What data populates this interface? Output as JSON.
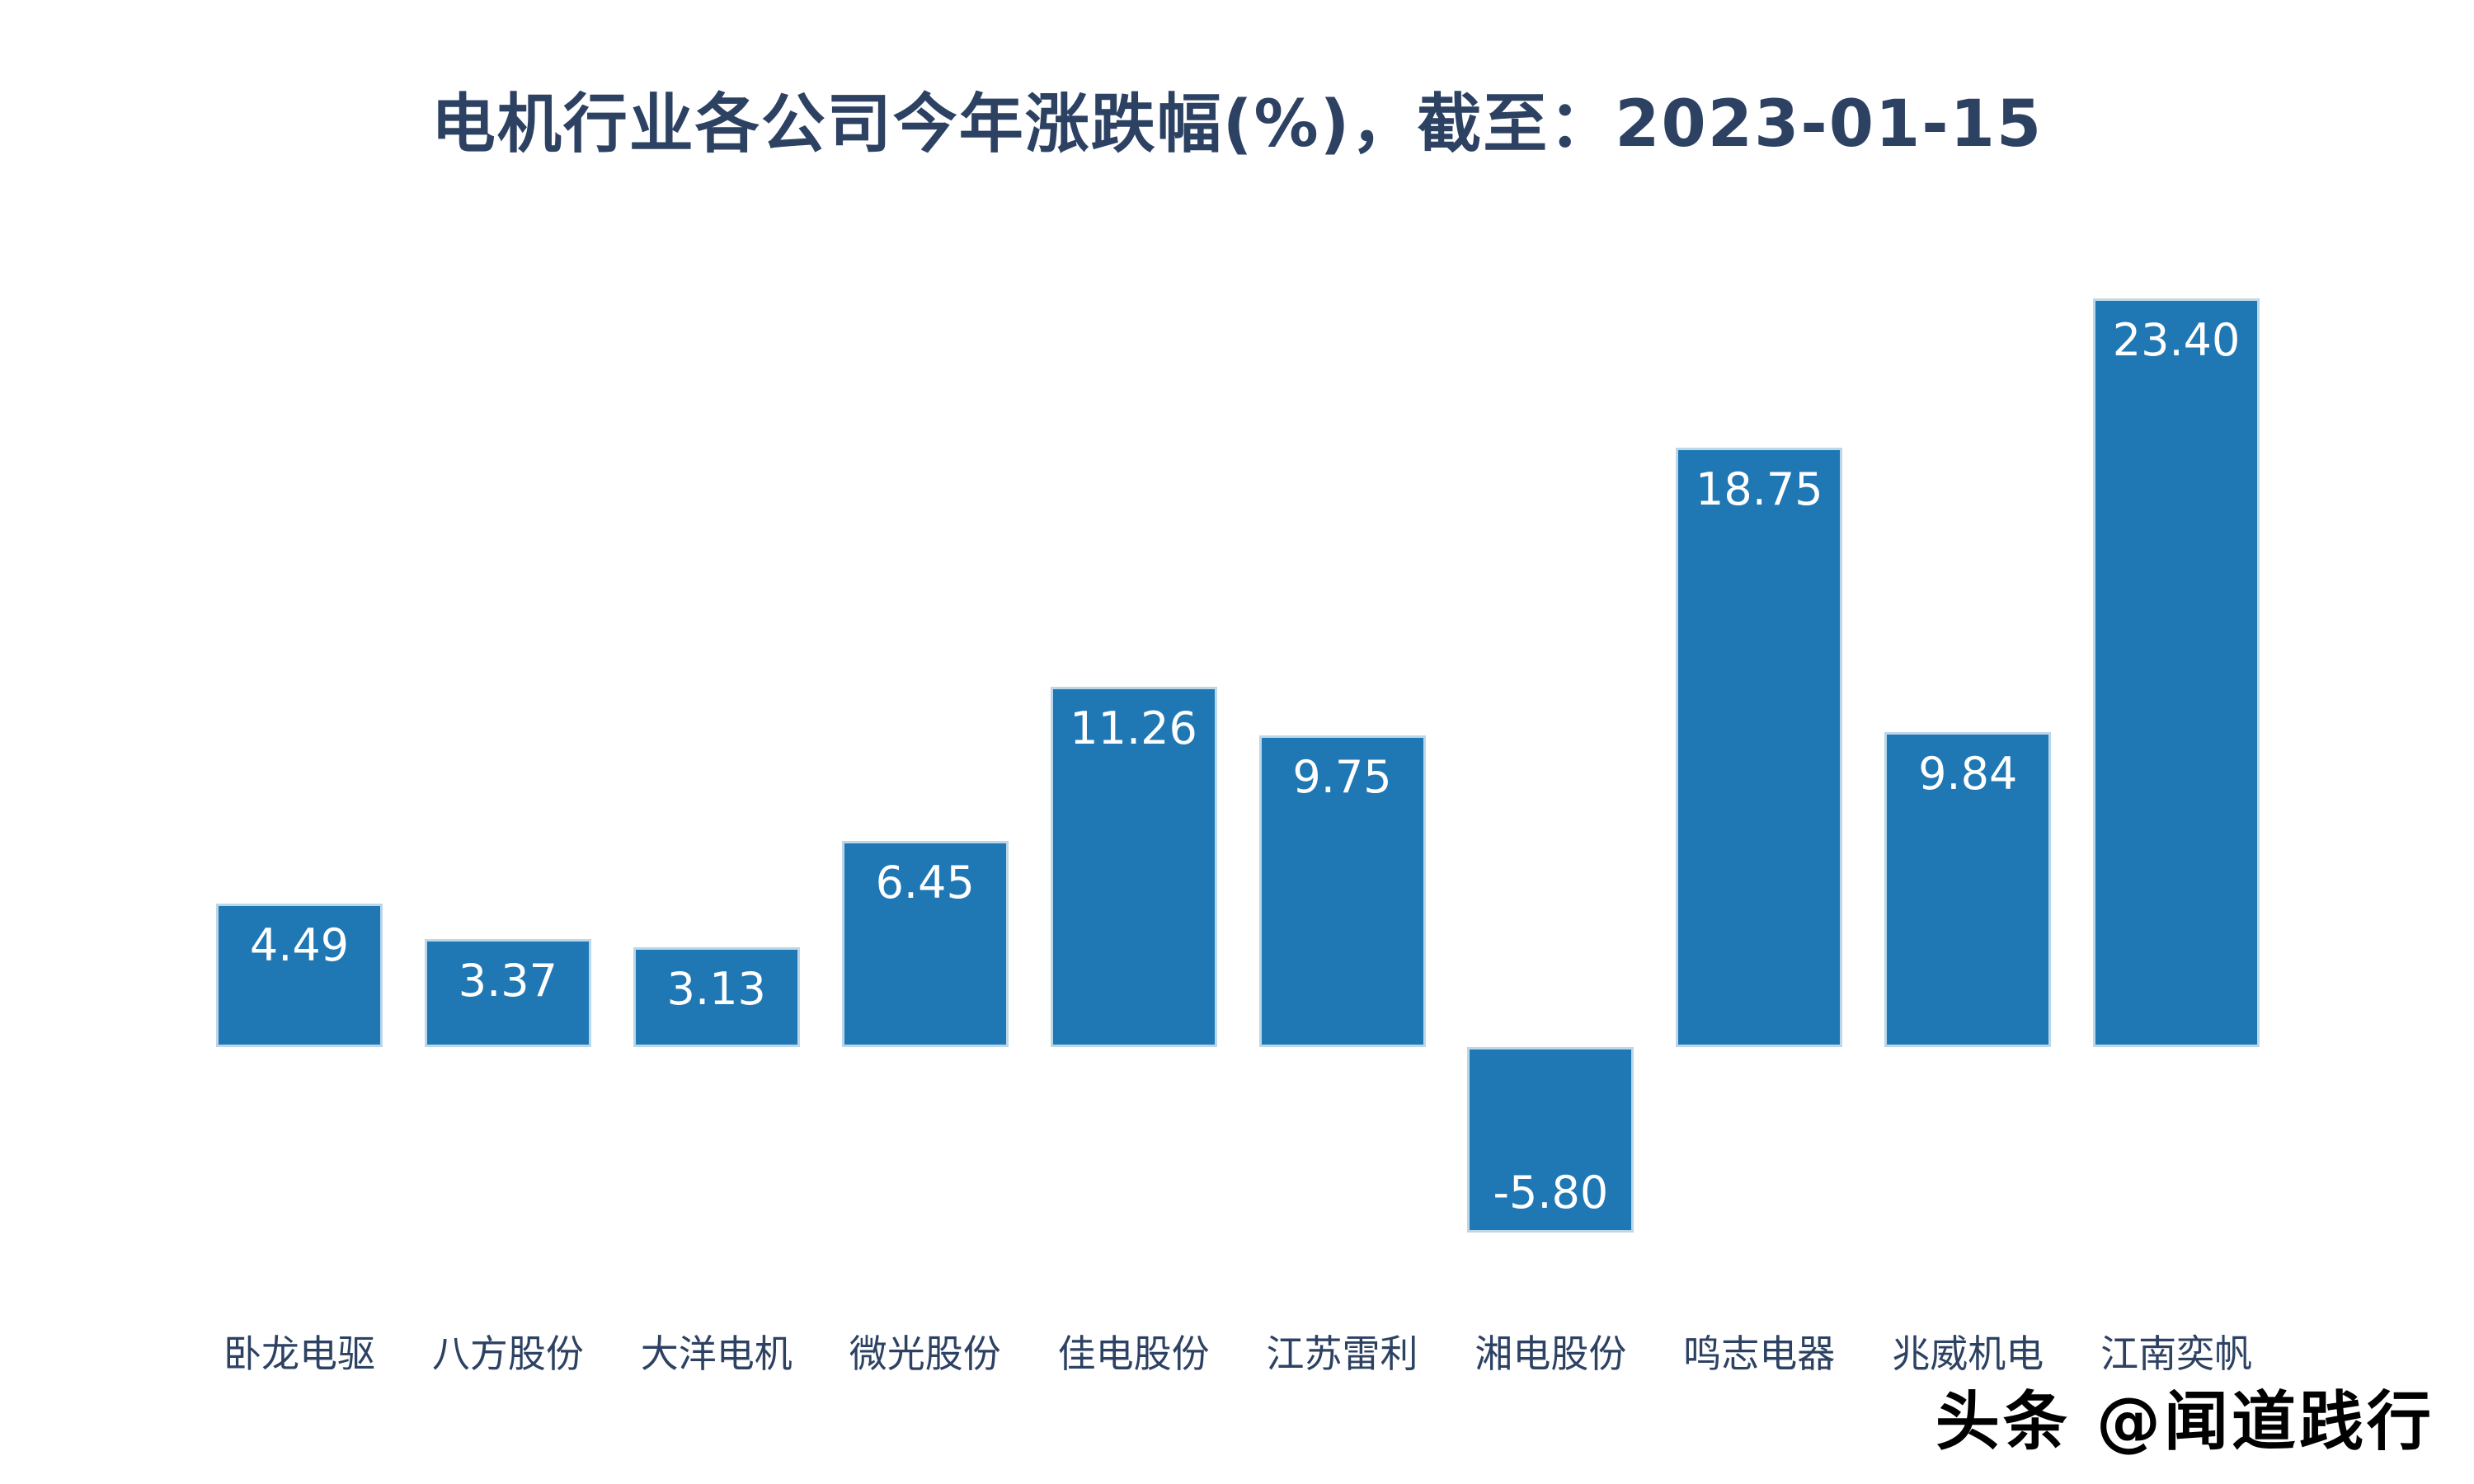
{
  "title": "电机行业各公司今年涨跌幅(%)，截至：2023-01-15",
  "watermark": "头条 @闻道践行",
  "colors": {
    "background": "#ffffff",
    "bar_fill": "#1f77b4",
    "bar_edge": "#bcd7ea",
    "title_text": "#2d4263",
    "category_label_text": "#2d4263",
    "value_label_text": "#ffffff",
    "watermark_text": "#000000"
  },
  "chart_data": {
    "type": "bar",
    "title": "电机行业各公司今年涨跌幅(%)，截至：2023-01-15",
    "categories": [
      "卧龙电驱",
      "八方股份",
      "大洋电机",
      "微光股份",
      "佳电股份",
      "江苏雷利",
      "湘电股份",
      "鸣志电器",
      "兆威机电",
      "江南奕帆"
    ],
    "values": [
      4.49,
      3.37,
      3.13,
      6.45,
      11.26,
      9.75,
      -5.8,
      18.75,
      9.84,
      23.4
    ],
    "value_labels": [
      "4.49",
      "3.37",
      "3.13",
      "6.45",
      "11.26",
      "9.75",
      "-5.80",
      "18.75",
      "9.84",
      "23.40"
    ],
    "xlabel": "",
    "ylabel": "",
    "ylim": [
      -8,
      26
    ],
    "grid": false,
    "legend": null,
    "orientation": "vertical",
    "value_label_placement": "inside-top, inside-bottom for negative bars",
    "axis_lines": "none"
  }
}
